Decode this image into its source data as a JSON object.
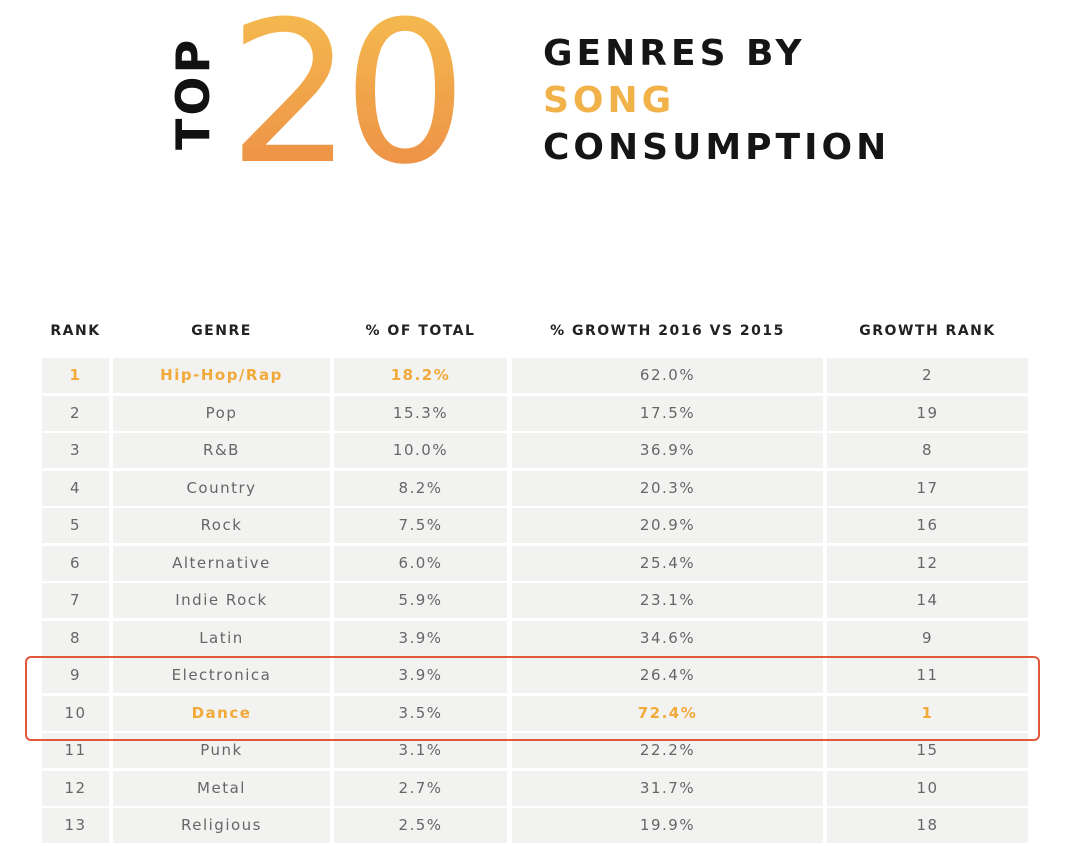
{
  "header": {
    "top_word": "TOP",
    "number": "20",
    "line1": "GENRES BY",
    "line2": "SONG",
    "line3": "CONSUMPTION"
  },
  "colors": {
    "accent": "#f1a93a",
    "highlight_border": "#e2583a",
    "row_bg": "#f2f3f1"
  },
  "chart_data": {
    "type": "table",
    "columns": [
      "RANK",
      "GENRE",
      "% OF TOTAL",
      "% GROWTH 2016 VS 2015",
      "GROWTH RANK"
    ],
    "rows": [
      {
        "rank": "1",
        "genre": "Hip-Hop/Rap",
        "pct": "18.2%",
        "growth": "62.0%",
        "growth_rank": "2"
      },
      {
        "rank": "2",
        "genre": "Pop",
        "pct": "15.3%",
        "growth": "17.5%",
        "growth_rank": "19"
      },
      {
        "rank": "3",
        "genre": "R&B",
        "pct": "10.0%",
        "growth": "36.9%",
        "growth_rank": "8"
      },
      {
        "rank": "4",
        "genre": "Country",
        "pct": "8.2%",
        "growth": "20.3%",
        "growth_rank": "17"
      },
      {
        "rank": "5",
        "genre": "Rock",
        "pct": "7.5%",
        "growth": "20.9%",
        "growth_rank": "16"
      },
      {
        "rank": "6",
        "genre": "Alternative",
        "pct": "6.0%",
        "growth": "25.4%",
        "growth_rank": "12"
      },
      {
        "rank": "7",
        "genre": "Indie Rock",
        "pct": "5.9%",
        "growth": "23.1%",
        "growth_rank": "14"
      },
      {
        "rank": "8",
        "genre": "Latin",
        "pct": "3.9%",
        "growth": "34.6%",
        "growth_rank": "9"
      },
      {
        "rank": "9",
        "genre": "Electronica",
        "pct": "3.9%",
        "growth": "26.4%",
        "growth_rank": "11"
      },
      {
        "rank": "10",
        "genre": "Dance",
        "pct": "3.5%",
        "growth": "72.4%",
        "growth_rank": "1"
      },
      {
        "rank": "11",
        "genre": "Punk",
        "pct": "3.1%",
        "growth": "22.2%",
        "growth_rank": "15"
      },
      {
        "rank": "12",
        "genre": "Metal",
        "pct": "2.7%",
        "growth": "31.7%",
        "growth_rank": "10"
      },
      {
        "rank": "13",
        "genre": "Religious",
        "pct": "2.5%",
        "growth": "19.9%",
        "growth_rank": "18"
      }
    ]
  }
}
